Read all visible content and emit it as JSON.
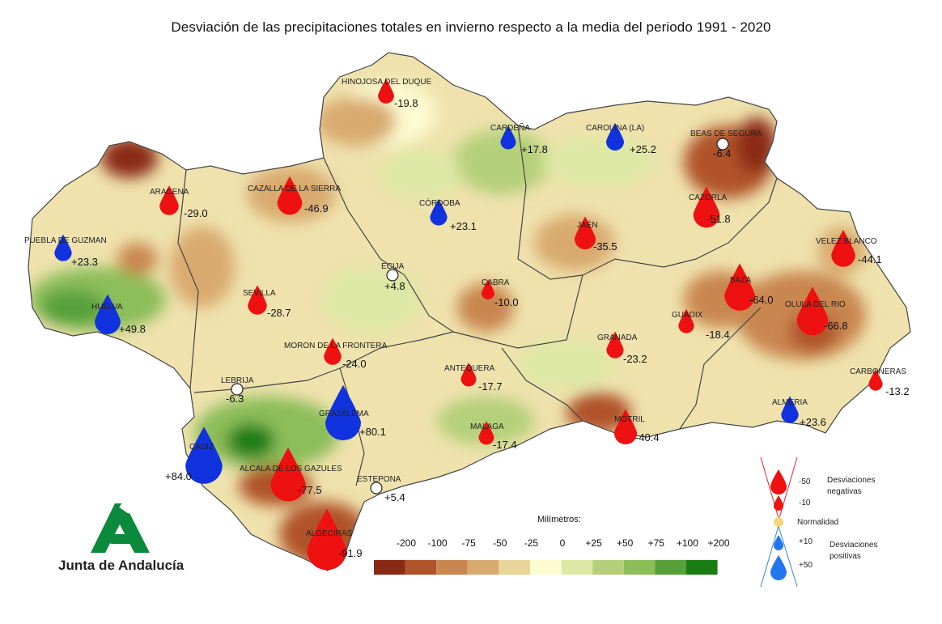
{
  "title": "Desviación de las precipitaciones totales en invierno respecto a la media del periodo 1991 - 2020",
  "colors": {
    "sea": "#ffffff",
    "neg_drop": "#ee1111",
    "pos_drop": "#1133dd",
    "normal": "#ffffff"
  },
  "stations": [
    {
      "name": "HINOJOSA DEL DUQUE",
      "value": "-19.8",
      "kind": "neg"
    },
    {
      "name": "CARDEÑA",
      "value": "+17.8",
      "kind": "pos"
    },
    {
      "name": "CAROLINA (LA)",
      "value": "+25.2",
      "kind": "pos"
    },
    {
      "name": "BEAS DE SEGURA",
      "value": "-6.4",
      "kind": "normal"
    },
    {
      "name": "ARACENA",
      "value": "-29.0",
      "kind": "neg"
    },
    {
      "name": "CAZALLA DE LA SIERRA",
      "value": "-46.9",
      "kind": "neg"
    },
    {
      "name": "CÓRDOBA",
      "value": "+23.1",
      "kind": "pos"
    },
    {
      "name": "CAZORLA",
      "value": "-51.8",
      "kind": "neg"
    },
    {
      "name": "PUEBLA DE GUZMAN",
      "value": "+23.3",
      "kind": "pos"
    },
    {
      "name": "JAÉN",
      "value": "-35.5",
      "kind": "neg"
    },
    {
      "name": "VELEZ BLANCO",
      "value": "-44.1",
      "kind": "neg"
    },
    {
      "name": "ECIJA",
      "value": "+4.8",
      "kind": "normal"
    },
    {
      "name": "CABRA",
      "value": "-10.0",
      "kind": "neg"
    },
    {
      "name": "BAZA",
      "value": "-64.0",
      "kind": "neg"
    },
    {
      "name": "SEVILLA",
      "value": "-28.7",
      "kind": "neg"
    },
    {
      "name": "HUELVA",
      "value": "+49.8",
      "kind": "pos"
    },
    {
      "name": "OLULA DEL RIO",
      "value": "-66.8",
      "kind": "neg"
    },
    {
      "name": "GUADIX",
      "value": "-18.4",
      "kind": "neg"
    },
    {
      "name": "GRANADA",
      "value": "-23.2",
      "kind": "neg"
    },
    {
      "name": "MORON DE LA FRONTERA",
      "value": "-24.0",
      "kind": "neg"
    },
    {
      "name": "ANTEQUERA",
      "value": "-17.7",
      "kind": "neg"
    },
    {
      "name": "CARBONERAS",
      "value": "-13.2",
      "kind": "neg"
    },
    {
      "name": "LEBRIJA",
      "value": "-6.3",
      "kind": "normal"
    },
    {
      "name": "GRAZALEMA",
      "value": "+80.1",
      "kind": "pos"
    },
    {
      "name": "ALMERIA",
      "value": "+23.6",
      "kind": "pos"
    },
    {
      "name": "MALAGA",
      "value": "-17.4",
      "kind": "neg"
    },
    {
      "name": "MOTRIL",
      "value": "-40.4",
      "kind": "neg"
    },
    {
      "name": "CADIZ",
      "value": "+84.0",
      "kind": "pos"
    },
    {
      "name": "ALCALA DE LOS GAZULES",
      "value": "-77.5",
      "kind": "neg"
    },
    {
      "name": "ESTEPONA",
      "value": "+5.4",
      "kind": "normal"
    },
    {
      "name": "ALGECIRAS",
      "value": "-91.9",
      "kind": "neg"
    }
  ],
  "legend": {
    "title": "Milímetros:",
    "ticks": [
      "-200",
      "-100",
      "-75",
      "-50",
      "-25",
      "0",
      "+25",
      "+50",
      "+75",
      "+100",
      "+200"
    ],
    "colors": [
      "#8b2a14",
      "#b0532a",
      "#c98650",
      "#d9aa70",
      "#ead598",
      "#fdfbd0",
      "#dde8a4",
      "#b5d07a",
      "#8cbe5a",
      "#56a03a",
      "#1a7d14"
    ]
  },
  "drop_legend": {
    "neg_label_1": "Desviaciones",
    "neg_label_2": "negativas",
    "pos_label_1": "Desviaciones",
    "pos_label_2": "positivas",
    "normal_label": "Normalidad",
    "v_m50": "-50",
    "v_m10": "-10",
    "v_p10": "+10",
    "v_p50": "+50"
  },
  "logo": {
    "text": "Junta de Andalucía"
  }
}
